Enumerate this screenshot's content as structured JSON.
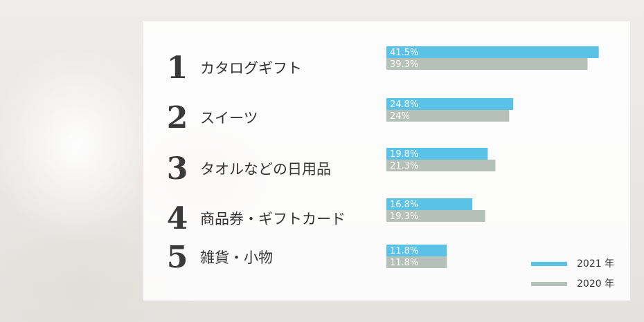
{
  "chart_data": {
    "type": "bar",
    "orientation": "horizontal",
    "categories": [
      "カタログギフト",
      "スイーツ",
      "タオルなどの日用品",
      "商品券・ギフトカード",
      "雑貨・小物"
    ],
    "ranks": [
      "1",
      "2",
      "3",
      "4",
      "5"
    ],
    "series": [
      {
        "name": "2021 年",
        "color": "#5bc2e7",
        "values": [
          41.5,
          24.8,
          19.8,
          16.8,
          11.8
        ],
        "labels": [
          "41.5%",
          "24.8%",
          "19.8%",
          "16.8%",
          "11.8%"
        ]
      },
      {
        "name": "2020 年",
        "color": "#b5c0b8",
        "values": [
          39.3,
          24,
          21.3,
          19.3,
          11.8
        ],
        "labels": [
          "39.3%",
          "24%",
          "21.3%",
          "19.3%",
          "11.8%"
        ]
      }
    ],
    "xlim": [
      0,
      43
    ],
    "legend_position": "bottom-right",
    "grid": false
  }
}
